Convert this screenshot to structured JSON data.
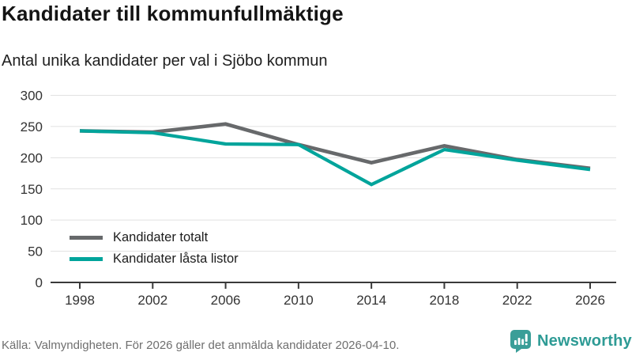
{
  "header": {
    "title": "Kandidater till kommunfullmäktige",
    "subtitle": "Antal unika kandidater per val i Sjöbo kommun"
  },
  "chart_data": {
    "type": "line",
    "title": "Kandidater till kommunfullmäktige",
    "subtitle": "Antal unika kandidater per val i Sjöbo kommun",
    "categories": [
      1998,
      2002,
      2006,
      2010,
      2014,
      2018,
      2022,
      2026
    ],
    "series": [
      {
        "name": "Kandidater totalt",
        "color": "#67696b",
        "values": [
          243,
          241,
          254,
          221,
          192,
          219,
          197,
          183
        ]
      },
      {
        "name": "Kandidater låsta listor",
        "color": "#00a49b",
        "values": [
          243,
          240,
          222,
          221,
          157,
          213,
          196,
          181
        ]
      }
    ],
    "xlabel": "",
    "ylabel": "",
    "ylim": [
      0,
      300
    ],
    "yticks": [
      0,
      50,
      100,
      150,
      200,
      250,
      300
    ],
    "grid": true,
    "legend_position": "inside-bottom-left"
  },
  "footer": {
    "source": "Källa: Valmyndigheten. För 2026 gäller det anmälda kandidater 2026-04-10.",
    "brand": "Newsworthy"
  },
  "colors": {
    "grid": "#e1e1e1",
    "axis": "#3a3a3a",
    "tick_text": "#333333",
    "brand_teal": "#2e9b95"
  }
}
